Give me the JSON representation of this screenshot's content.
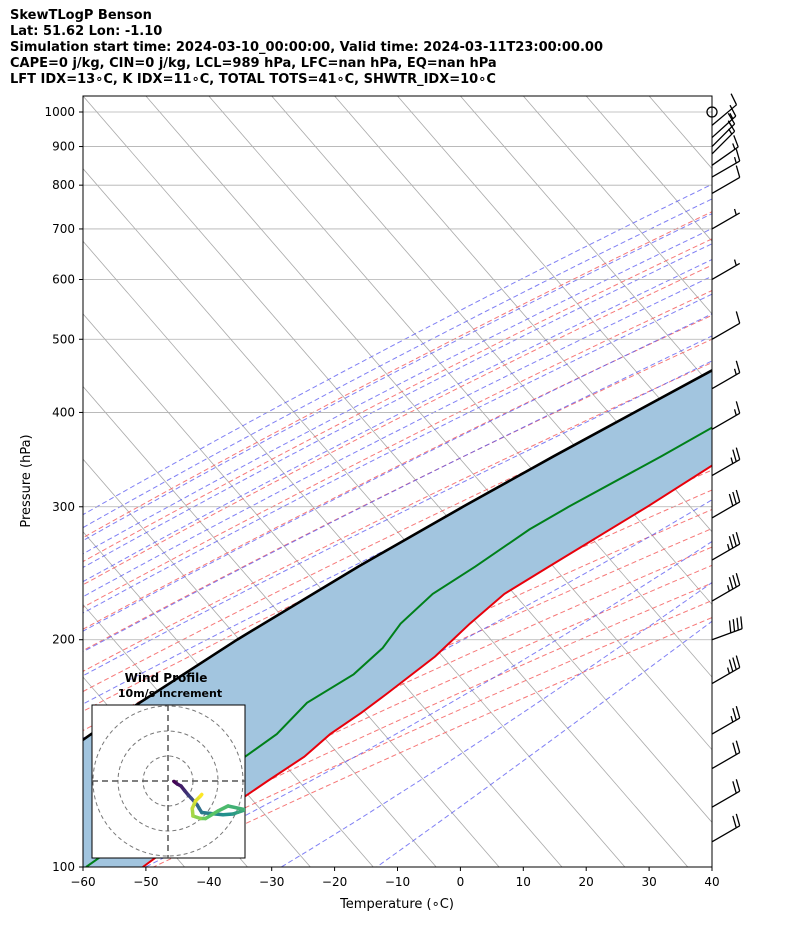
{
  "header": {
    "line1": "SkewTLogP Benson",
    "line2": "Lat: 51.62   Lon: -1.10",
    "line3": "Simulation start time: 2024-03-10_00:00:00, Valid time: 2024-03-11T23:00:00.00",
    "line4": "CAPE=0 j/kg, CIN=0 j/kg, LCL=989 hPa, LFC=nan hPa, EQ=nan hPa",
    "line5": "LFT IDX=13∘C, K IDX=11∘C, TOTAL TOTS=41∘C, SHWTR_IDX=10∘C"
  },
  "chart_data": {
    "type": "skew-t log-p",
    "xlabel": "Temperature (∘C)",
    "ylabel": "Pressure (hPa)",
    "xlim": [
      -60,
      40
    ],
    "ylim": [
      1050,
      100
    ],
    "xticks": [
      -60,
      -50,
      -40,
      -30,
      -20,
      -10,
      0,
      10,
      20,
      30,
      40
    ],
    "yticks": [
      1000,
      900,
      800,
      700,
      600,
      500,
      400,
      300,
      200,
      100
    ],
    "colors": {
      "temperature": "#e8000b",
      "dewpoint": "#00801a",
      "parcel": "#000000",
      "shading": "#a2c5df",
      "isotherms": "#a9a9a9",
      "dry_adiabats": "#f46060",
      "moist_adiabats": "#5555f0",
      "mixing_ratio": "#8a2be2"
    },
    "temperature_profile": [
      {
        "p": 1000,
        "t": 6.8
      },
      {
        "p": 970,
        "t": 6.5
      },
      {
        "p": 930,
        "t": 6.2
      },
      {
        "p": 880,
        "t": 5.9
      },
      {
        "p": 840,
        "t": 6.7
      },
      {
        "p": 800,
        "t": 6.5
      },
      {
        "p": 750,
        "t": 6.0
      },
      {
        "p": 700,
        "t": 5.0
      },
      {
        "p": 650,
        "t": 3.6
      },
      {
        "p": 600,
        "t": 1.6
      },
      {
        "p": 550,
        "t": -0.9
      },
      {
        "p": 500,
        "t": -3.3
      },
      {
        "p": 450,
        "t": -5.9
      },
      {
        "p": 400,
        "t": -9.4
      },
      {
        "p": 350,
        "t": -14.2
      },
      {
        "p": 300,
        "t": -19.9
      },
      {
        "p": 250,
        "t": -27.3
      },
      {
        "p": 230,
        "t": -30.6
      },
      {
        "p": 210,
        "t": -32.0
      },
      {
        "p": 190,
        "t": -33.0
      },
      {
        "p": 170,
        "t": -35.5
      },
      {
        "p": 160,
        "t": -37.0
      },
      {
        "p": 150,
        "t": -39.0
      },
      {
        "p": 140,
        "t": -40.0
      },
      {
        "p": 130,
        "t": -42.5
      },
      {
        "p": 120,
        "t": -45.0
      },
      {
        "p": 110,
        "t": -48.0
      },
      {
        "p": 100,
        "t": -50.5
      }
    ],
    "dewpoint_profile": [
      {
        "p": 1000,
        "d": 6.0
      },
      {
        "p": 950,
        "d": 5.2
      },
      {
        "p": 900,
        "d": 5.0
      },
      {
        "p": 860,
        "d": 4.6
      },
      {
        "p": 830,
        "d": 3.0
      },
      {
        "p": 800,
        "d": 0.8
      },
      {
        "p": 750,
        "d": -1.5
      },
      {
        "p": 700,
        "d": -3.3
      },
      {
        "p": 650,
        "d": -6.0
      },
      {
        "p": 600,
        "d": -11.5
      },
      {
        "p": 580,
        "d": -14.0
      },
      {
        "p": 540,
        "d": -17.3
      },
      {
        "p": 510,
        "d": -12.1
      },
      {
        "p": 490,
        "d": -10.2
      },
      {
        "p": 450,
        "d": -12.8
      },
      {
        "p": 400,
        "d": -18.3
      },
      {
        "p": 350,
        "d": -24.6
      },
      {
        "p": 300,
        "d": -32.4
      },
      {
        "p": 280,
        "d": -35.5
      },
      {
        "p": 250,
        "d": -39.0
      },
      {
        "p": 230,
        "d": -42.0
      },
      {
        "p": 210,
        "d": -43.0
      },
      {
        "p": 195,
        "d": -42.5
      },
      {
        "p": 180,
        "d": -43.5
      },
      {
        "p": 165,
        "d": -47.0
      },
      {
        "p": 150,
        "d": -47.5
      },
      {
        "p": 130,
        "d": -51.5
      },
      {
        "p": 115,
        "d": -55.5
      },
      {
        "p": 100,
        "d": -59.5
      }
    ],
    "parcel_profile": [
      {
        "p": 1000,
        "t": 6.8
      },
      {
        "p": 990,
        "t": 6.1
      },
      {
        "p": 950,
        "t": 4.6
      },
      {
        "p": 900,
        "t": 2.5
      },
      {
        "p": 850,
        "t": 0.3
      },
      {
        "p": 800,
        "t": -2.1
      },
      {
        "p": 750,
        "t": -4.7
      },
      {
        "p": 700,
        "t": -7.7
      },
      {
        "p": 650,
        "t": -11.0
      },
      {
        "p": 600,
        "t": -14.8
      },
      {
        "p": 550,
        "t": -19.0
      },
      {
        "p": 500,
        "t": -23.6
      },
      {
        "p": 450,
        "t": -28.9
      },
      {
        "p": 400,
        "t": -34.9
      },
      {
        "p": 350,
        "t": -41.7
      },
      {
        "p": 300,
        "t": -49.2
      },
      {
        "p": 250,
        "t": -57.6
      },
      {
        "p": 200,
        "t": -66.8
      },
      {
        "p": 150,
        "t": -77.0
      },
      {
        "p": 100,
        "t": -89.0
      }
    ],
    "wind_barbs": [
      {
        "p": 1000,
        "speed_kt": 2,
        "dir": 0
      },
      {
        "p": 960,
        "speed_kt": 10,
        "dir": 310
      },
      {
        "p": 925,
        "speed_kt": 15,
        "dir": 312
      },
      {
        "p": 900,
        "speed_kt": 15,
        "dir": 315
      },
      {
        "p": 880,
        "speed_kt": 15,
        "dir": 315
      },
      {
        "p": 850,
        "speed_kt": 15,
        "dir": 305
      },
      {
        "p": 820,
        "speed_kt": 15,
        "dir": 300
      },
      {
        "p": 780,
        "speed_kt": 10,
        "dir": 300
      },
      {
        "p": 700,
        "speed_kt": 5,
        "dir": 300
      },
      {
        "p": 600,
        "speed_kt": 5,
        "dir": 300
      },
      {
        "p": 500,
        "speed_kt": 10,
        "dir": 300
      },
      {
        "p": 430,
        "speed_kt": 15,
        "dir": 300
      },
      {
        "p": 380,
        "speed_kt": 15,
        "dir": 300
      },
      {
        "p": 330,
        "speed_kt": 25,
        "dir": 300
      },
      {
        "p": 290,
        "speed_kt": 30,
        "dir": 300
      },
      {
        "p": 255,
        "speed_kt": 35,
        "dir": 300
      },
      {
        "p": 225,
        "speed_kt": 35,
        "dir": 300
      },
      {
        "p": 200,
        "speed_kt": 40,
        "dir": 290
      },
      {
        "p": 175,
        "speed_kt": 35,
        "dir": 300
      },
      {
        "p": 150,
        "speed_kt": 25,
        "dir": 300
      },
      {
        "p": 135,
        "speed_kt": 20,
        "dir": 300
      },
      {
        "p": 120,
        "speed_kt": 20,
        "dir": 300
      },
      {
        "p": 108,
        "speed_kt": 20,
        "dir": 300
      }
    ],
    "hodograph": {
      "title": "Wind Profile",
      "subtitle": "10m/s increment",
      "points": [
        {
          "u": 2.4,
          "v": -0.2
        },
        {
          "u": 3.7,
          "v": -1.2
        },
        {
          "u": 5.2,
          "v": -2.0
        },
        {
          "u": 6.7,
          "v": -3.9
        },
        {
          "u": 8.1,
          "v": -5.6
        },
        {
          "u": 9.3,
          "v": -6.9
        },
        {
          "u": 10.5,
          "v": -8.2
        },
        {
          "u": 11.7,
          "v": -9.6
        },
        {
          "u": 12.5,
          "v": -11.0
        },
        {
          "u": 13.5,
          "v": -12.6
        },
        {
          "u": 17.0,
          "v": -13.0
        },
        {
          "u": 22.0,
          "v": -13.5
        },
        {
          "u": 26.0,
          "v": -13.2
        },
        {
          "u": 28.0,
          "v": -12.5
        },
        {
          "u": 31.0,
          "v": -11.5
        },
        {
          "u": 24.0,
          "v": -10.0
        },
        {
          "u": 20.0,
          "v": -12.0
        },
        {
          "u": 15.0,
          "v": -15.0
        },
        {
          "u": 13.0,
          "v": -15.0
        },
        {
          "u": 10.0,
          "v": -14.0
        },
        {
          "u": 9.7,
          "v": -11.0
        },
        {
          "u": 11.0,
          "v": -8.0
        },
        {
          "u": 13.0,
          "v": -6.0
        },
        {
          "u": 13.5,
          "v": -5.4
        }
      ]
    }
  }
}
